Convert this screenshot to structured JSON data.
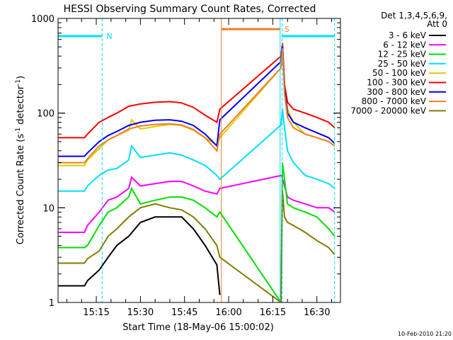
{
  "chart_data": {
    "type": "line",
    "title": "HESSI Observing Summary Count Rates, Corrected",
    "xlabel": "Start Time (18-May-06 15:00:02)",
    "ylabel": "Corrected Count Rate (s-1 detector-1)",
    "ylabel_parts": [
      "Corrected Count Rate (s",
      "-1",
      " detector",
      "-1",
      ")"
    ],
    "yscale": "log",
    "ylim": [
      1,
      1000
    ],
    "xlim_minutes": [
      2,
      98
    ],
    "x_unit": "minutes after 15:00",
    "x_tick_labels": [
      {
        "minute": 15,
        "label": "15:15"
      },
      {
        "minute": 30,
        "label": "15:30"
      },
      {
        "minute": 45,
        "label": "15:45"
      },
      {
        "minute": 60,
        "label": "16:00"
      },
      {
        "minute": 75,
        "label": "16:15"
      },
      {
        "minute": 90,
        "label": "16:30"
      }
    ],
    "y_tick_labels": [
      {
        "value": 1,
        "label": "1"
      },
      {
        "value": 10,
        "label": "10"
      },
      {
        "value": 100,
        "label": "100"
      },
      {
        "value": 1000,
        "label": "1000"
      }
    ],
    "legend_header": [
      "Det 1,3,4,5,6,9,",
      "Att 0"
    ],
    "legend_position": "right",
    "footer_date": "10-Feb-2010 21:20",
    "flags": [
      {
        "label": "N",
        "color": "#00e0ff",
        "start": 2,
        "end": 17,
        "level": 650
      },
      {
        "label": "S",
        "color": "#f07f1f",
        "start": 57.5,
        "end": 77.5,
        "level": 770
      },
      {
        "label": "",
        "color": "#00e0ff",
        "start": 78,
        "end": 96,
        "level": 650
      }
    ],
    "event_lines": [
      {
        "minute": 17,
        "color": "#00e0ff",
        "style": "dashed"
      },
      {
        "minute": 57.5,
        "color": "#f07f1f",
        "style": "solid"
      },
      {
        "minute": 77.5,
        "color": "#00e0ff",
        "style": "solid"
      },
      {
        "minute": 78.2,
        "color": "#00e0ff",
        "style": "dashed"
      },
      {
        "minute": 96,
        "color": "#00e0ff",
        "style": "dashed"
      }
    ],
    "series": [
      {
        "name": "3 - 6 keV",
        "color": "#000000",
        "x": [
          2,
          11,
          12,
          16,
          19,
          22,
          26,
          30,
          35,
          40,
          44,
          48,
          52,
          56,
          57
        ],
        "y": [
          1.5,
          1.5,
          1.7,
          2.2,
          3,
          4,
          5,
          7,
          8,
          8,
          8,
          6,
          4,
          2.5,
          1.2
        ]
      },
      {
        "name": "6 - 12 keV",
        "color": "#ff00ff",
        "x": [
          2,
          11,
          12,
          16,
          19,
          22,
          26,
          27,
          30,
          35,
          40,
          44,
          48,
          52,
          56,
          57,
          78,
          80,
          82,
          86,
          90,
          94,
          96
        ],
        "y": [
          5.5,
          5.5,
          6.5,
          9,
          12,
          13,
          16,
          21,
          17,
          18,
          19,
          19,
          17,
          15,
          14,
          16,
          22,
          13,
          12,
          11,
          10,
          10,
          9
        ]
      },
      {
        "name": "12 - 25 keV",
        "color": "#00e000",
        "x": [
          2,
          11,
          12,
          16,
          19,
          22,
          26,
          27,
          30,
          35,
          40,
          44,
          48,
          52,
          56,
          57,
          77.8,
          78.3,
          79,
          80,
          82,
          86,
          90,
          94,
          96
        ],
        "y": [
          3.8,
          3.8,
          4,
          6.5,
          9,
          10,
          13,
          16,
          11,
          12,
          13,
          13,
          12,
          10,
          8,
          9,
          1,
          30,
          20,
          11,
          10,
          9,
          8,
          6,
          5
        ]
      },
      {
        "name": "25 - 50 keV",
        "color": "#00e0ff",
        "x": [
          2,
          11,
          12,
          16,
          19,
          22,
          26,
          27,
          30,
          35,
          40,
          44,
          48,
          52,
          56,
          57,
          77.8,
          78.3,
          79,
          80,
          82,
          86,
          90,
          94,
          96
        ],
        "y": [
          15,
          15,
          17,
          22,
          25,
          26,
          32,
          45,
          34,
          36,
          38,
          36,
          32,
          28,
          22,
          20,
          75,
          110,
          70,
          40,
          30,
          22,
          20,
          18,
          16
        ]
      },
      {
        "name": "50 - 100 keV",
        "color": "#ddcc00",
        "x": [
          2,
          11,
          12,
          16,
          19,
          22,
          26,
          27,
          30,
          35,
          40,
          44,
          48,
          52,
          56,
          57,
          77.8,
          78.3,
          79,
          80,
          82,
          86,
          90,
          94,
          96
        ],
        "y": [
          28,
          28,
          32,
          42,
          52,
          58,
          66,
          85,
          68,
          72,
          76,
          74,
          66,
          55,
          46,
          55,
          300,
          520,
          200,
          110,
          80,
          60,
          55,
          50,
          45
        ]
      },
      {
        "name": "100 - 300 keV",
        "color": "#ff0000",
        "x": [
          2,
          11,
          12,
          16,
          19,
          22,
          26,
          30,
          35,
          40,
          44,
          48,
          52,
          56,
          57,
          77.8,
          78.3,
          79,
          80,
          82,
          86,
          90,
          94,
          96
        ],
        "y": [
          55,
          55,
          60,
          80,
          90,
          100,
          118,
          125,
          130,
          132,
          128,
          115,
          95,
          80,
          110,
          400,
          550,
          200,
          130,
          110,
          100,
          90,
          80,
          70
        ]
      },
      {
        "name": "300 - 800 keV",
        "color": "#0000ff",
        "x": [
          2,
          11,
          12,
          16,
          19,
          22,
          26,
          30,
          35,
          40,
          44,
          48,
          52,
          56,
          57,
          77.8,
          78.3,
          79,
          80,
          82,
          86,
          90,
          94,
          96
        ],
        "y": [
          35,
          35,
          38,
          50,
          58,
          64,
          74,
          80,
          84,
          85,
          82,
          74,
          60,
          45,
          85,
          350,
          500,
          180,
          100,
          80,
          70,
          62,
          55,
          48
        ]
      },
      {
        "name": "800 - 7000 keV",
        "color": "#f07f1f",
        "x": [
          2,
          11,
          12,
          16,
          19,
          22,
          26,
          30,
          35,
          40,
          44,
          48,
          52,
          56,
          57,
          77.8,
          78.3,
          79,
          80,
          82,
          86,
          90,
          94,
          96
        ],
        "y": [
          30,
          30,
          33,
          45,
          52,
          58,
          68,
          73,
          76,
          77,
          75,
          67,
          55,
          40,
          60,
          300,
          480,
          160,
          90,
          70,
          60,
          55,
          50,
          45
        ]
      },
      {
        "name": "7000 - 20000 keV",
        "color": "#807f00",
        "x": [
          2,
          11,
          12,
          16,
          19,
          22,
          26,
          30,
          35,
          40,
          44,
          48,
          52,
          56,
          57,
          77.8,
          78.3,
          79,
          80,
          82,
          86,
          90,
          94,
          96
        ],
        "y": [
          2.6,
          2.6,
          2.9,
          3.5,
          5,
          6,
          8,
          10,
          11,
          10,
          9.5,
          8,
          6,
          4,
          3,
          1,
          15,
          8,
          7,
          6.5,
          5.5,
          4.5,
          3.8,
          3.2
        ]
      }
    ]
  }
}
